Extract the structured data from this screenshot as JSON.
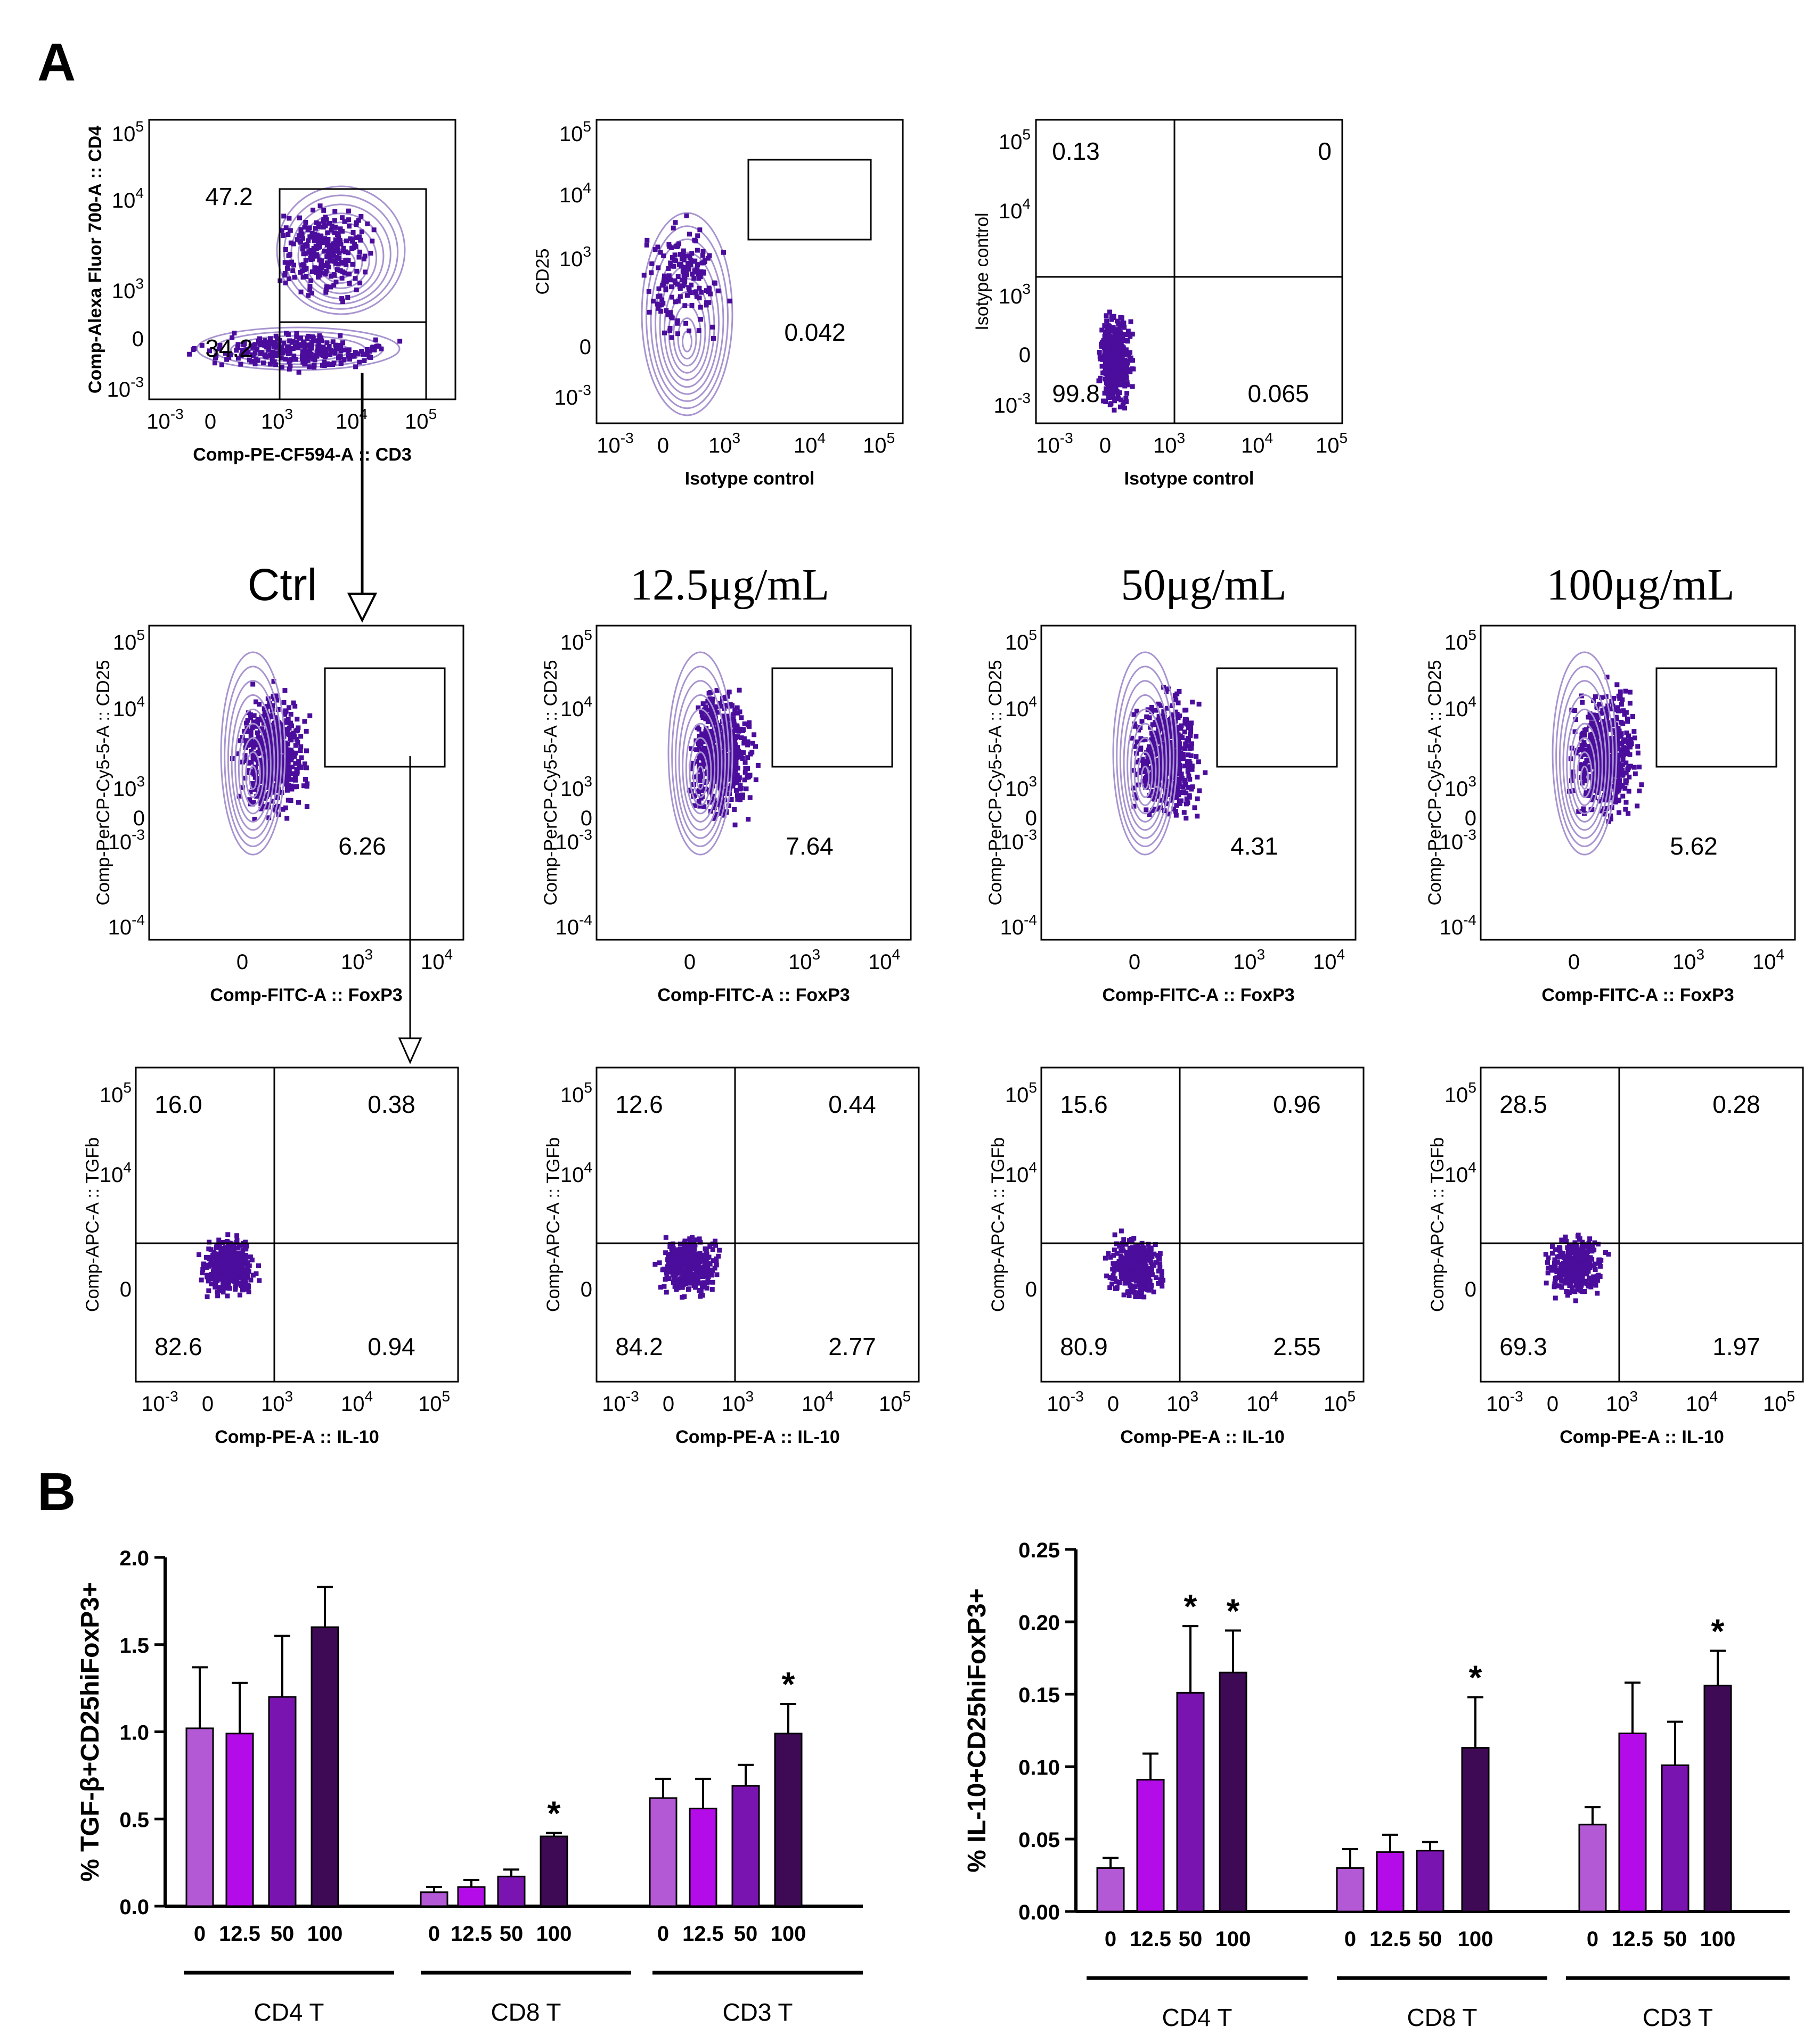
{
  "panel_labels": {
    "a": "A",
    "b": "B"
  },
  "colors": {
    "dots": "#4b0d9c",
    "contour": "#a894cf",
    "bar0": "#b359d6",
    "bar12": "#b40ce8",
    "bar50": "#7a14b0",
    "bar100": "#3f0a55"
  },
  "flow_row1": [
    {
      "ylabel": "Comp-Alexa Fluor 700-A :: CD4",
      "xlabel": "Comp-PE-CF594-A :: CD3",
      "xticks": [
        "10-3",
        "0",
        "103",
        "104",
        "105"
      ],
      "yticks": [
        "105",
        "104",
        "103",
        "0",
        "10-3"
      ],
      "values": [
        "47.2",
        "34.2"
      ]
    },
    {
      "ylabel": "CD25",
      "xlabel": "Isotype control",
      "xticks": [
        "10-3",
        "0",
        "103",
        "104",
        "105"
      ],
      "yticks": [
        "105",
        "104",
        "103",
        "0",
        "10-3"
      ],
      "values": [
        "0.042"
      ]
    },
    {
      "ylabel": "Isotype control",
      "xlabel": "Isotype control",
      "xticks": [
        "10-3",
        "0",
        "103",
        "104",
        "105"
      ],
      "yticks": [
        "105",
        "104",
        "103",
        "0",
        "10-3"
      ],
      "values": [
        "0.13",
        "0",
        "99.8",
        "0.065"
      ]
    }
  ],
  "conditions": [
    "Ctrl",
    "12.5μg/mL",
    "50μg/mL",
    "100μg/mL"
  ],
  "flow_row2": {
    "ylabel": "Comp-PerCP-Cy5-5-A :: CD25",
    "xlabel": "Comp-FITC-A :: FoxP3",
    "xticks": [
      "0",
      "103",
      "104"
    ],
    "yticks": [
      "105",
      "104",
      "103",
      "0",
      "10-3",
      "10-4"
    ],
    "values": [
      "6.26",
      "7.64",
      "4.31",
      "5.62"
    ]
  },
  "flow_row3": {
    "ylabel": "Comp-APC-A :: TGFb",
    "xlabel": "Comp-PE-A :: IL-10",
    "xticks": [
      "10-3",
      "0",
      "103",
      "104",
      "105"
    ],
    "yticks": [
      "105",
      "104",
      "0"
    ],
    "quadrants": [
      [
        "16.0",
        "0.38",
        "82.6",
        "0.94"
      ],
      [
        "12.6",
        "0.44",
        "84.2",
        "2.77"
      ],
      [
        "15.6",
        "0.96",
        "80.9",
        "2.55"
      ],
      [
        "28.5",
        "0.28",
        "69.3",
        "1.97"
      ]
    ]
  },
  "chart_data": [
    {
      "type": "bar",
      "title": "",
      "ylabel": "% TGF-β+CD25hiFoxP3+",
      "ylim": [
        0,
        2.0
      ],
      "yticks": [
        "0.0",
        "0.5",
        "1.0",
        "1.5",
        "2.0"
      ],
      "categories": [
        "0",
        "12.5",
        "50",
        "100"
      ],
      "groups": [
        "CD4 T",
        "CD8 T",
        "CD3 T"
      ],
      "series": [
        {
          "group": "CD4 T",
          "values": [
            1.02,
            0.99,
            1.2,
            1.6
          ],
          "errors": [
            0.35,
            0.29,
            0.35,
            0.23
          ],
          "sig": [
            "",
            "",
            "",
            ""
          ]
        },
        {
          "group": "CD8 T",
          "values": [
            0.08,
            0.11,
            0.17,
            0.4
          ],
          "errors": [
            0.03,
            0.04,
            0.04,
            0.02
          ],
          "sig": [
            "",
            "",
            "",
            "*"
          ]
        },
        {
          "group": "CD3 T",
          "values": [
            0.62,
            0.56,
            0.69,
            0.99
          ],
          "errors": [
            0.11,
            0.17,
            0.12,
            0.17
          ],
          "sig": [
            "",
            "",
            "",
            "*"
          ]
        }
      ]
    },
    {
      "type": "bar",
      "title": "",
      "ylabel": "% IL-10+CD25hiFoxP3+",
      "ylim": [
        0,
        0.25
      ],
      "yticks": [
        "0.00",
        "0.05",
        "0.10",
        "0.15",
        "0.20",
        "0.25"
      ],
      "categories": [
        "0",
        "12.5",
        "50",
        "100"
      ],
      "groups": [
        "CD4 T",
        "CD8 T",
        "CD3 T"
      ],
      "series": [
        {
          "group": "CD4 T",
          "values": [
            0.03,
            0.091,
            0.151,
            0.165
          ],
          "errors": [
            0.007,
            0.018,
            0.046,
            0.029
          ],
          "sig": [
            "",
            "",
            "*",
            "*"
          ]
        },
        {
          "group": "CD8 T",
          "values": [
            0.03,
            0.041,
            0.042,
            0.113
          ],
          "errors": [
            0.013,
            0.012,
            0.006,
            0.035
          ],
          "sig": [
            "",
            "",
            "",
            "*"
          ]
        },
        {
          "group": "CD3 T",
          "values": [
            0.06,
            0.123,
            0.101,
            0.156
          ],
          "errors": [
            0.012,
            0.035,
            0.03,
            0.024
          ],
          "sig": [
            "",
            "",
            "",
            "*"
          ]
        }
      ]
    }
  ]
}
